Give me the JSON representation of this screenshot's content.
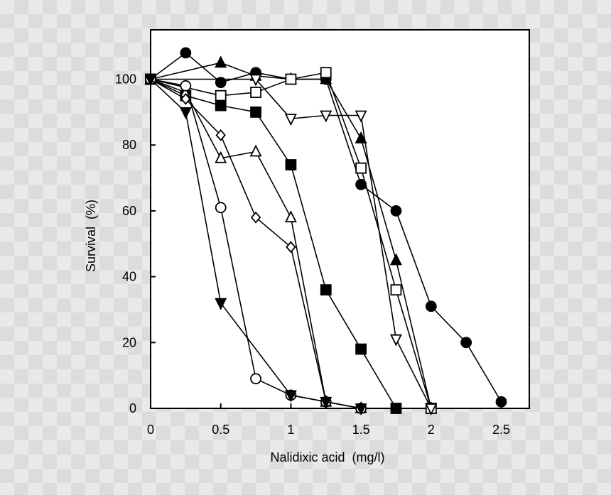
{
  "chart_data": {
    "type": "line",
    "xlabel": "Nalidixic acid  (mg/l)",
    "ylabel": "Survival  (%)",
    "xlim": [
      0,
      2.7
    ],
    "ylim": [
      0,
      115
    ],
    "xticks": [
      0,
      0.5,
      1,
      1.5,
      2,
      2.5
    ],
    "xtick_labels": [
      "0",
      "0.5",
      "1",
      "1.5",
      "2",
      "2.5"
    ],
    "yticks": [
      0,
      20,
      40,
      60,
      80,
      100
    ],
    "ytick_labels": [
      "0",
      "20",
      "40",
      "60",
      "80",
      "100"
    ],
    "grid": false,
    "colors": {
      "line": "#000000",
      "fill": "#000000",
      "open": "#ffffff"
    },
    "series": [
      {
        "marker": "filled-circle",
        "points": [
          [
            0,
            100
          ],
          [
            0.25,
            108
          ],
          [
            0.5,
            99
          ],
          [
            0.75,
            102
          ],
          [
            1,
            100
          ],
          [
            1.25,
            100
          ],
          [
            1.5,
            68
          ],
          [
            1.75,
            60
          ],
          [
            2,
            31
          ],
          [
            2.25,
            20
          ],
          [
            2.5,
            2
          ]
        ]
      },
      {
        "marker": "filled-triangle-up",
        "points": [
          [
            0,
            100
          ],
          [
            0.5,
            105
          ],
          [
            0.75,
            101
          ],
          [
            1,
            100
          ],
          [
            1.25,
            100
          ],
          [
            1.5,
            82
          ],
          [
            1.75,
            45
          ],
          [
            2,
            0
          ]
        ]
      },
      {
        "marker": "open-square",
        "points": [
          [
            0,
            100
          ],
          [
            0.5,
            95
          ],
          [
            0.75,
            96
          ],
          [
            1,
            100
          ],
          [
            1.25,
            102
          ],
          [
            1.5,
            73
          ],
          [
            1.75,
            36
          ],
          [
            2,
            0
          ]
        ]
      },
      {
        "marker": "open-triangle-down",
        "points": [
          [
            0,
            100
          ],
          [
            0.75,
            100
          ],
          [
            1,
            88
          ],
          [
            1.25,
            89
          ],
          [
            1.5,
            89
          ],
          [
            1.75,
            21
          ],
          [
            2,
            0
          ]
        ]
      },
      {
        "marker": "filled-square",
        "points": [
          [
            0,
            100
          ],
          [
            0.25,
            95
          ],
          [
            0.5,
            92
          ],
          [
            0.75,
            90
          ],
          [
            1,
            74
          ],
          [
            1.25,
            36
          ],
          [
            1.5,
            18
          ],
          [
            1.75,
            0
          ]
        ]
      },
      {
        "marker": "open-triangle-up",
        "points": [
          [
            0,
            100
          ],
          [
            0.25,
            96
          ],
          [
            0.5,
            76
          ],
          [
            0.75,
            78
          ],
          [
            1,
            58
          ],
          [
            1.25,
            2
          ],
          [
            1.5,
            0
          ]
        ]
      },
      {
        "marker": "open-diamond",
        "points": [
          [
            0,
            100
          ],
          [
            0.25,
            94
          ],
          [
            0.5,
            83
          ],
          [
            0.75,
            58
          ],
          [
            1,
            49
          ],
          [
            1.25,
            2
          ],
          [
            1.5,
            0
          ]
        ]
      },
      {
        "marker": "open-circle",
        "points": [
          [
            0,
            100
          ],
          [
            0.25,
            98
          ],
          [
            0.5,
            61
          ],
          [
            0.75,
            9
          ],
          [
            1,
            4
          ],
          [
            1.25,
            2
          ],
          [
            1.5,
            0
          ]
        ]
      },
      {
        "marker": "filled-triangle-down",
        "points": [
          [
            0,
            100
          ],
          [
            0.25,
            90
          ],
          [
            0.5,
            32
          ],
          [
            1,
            4
          ],
          [
            1.25,
            2
          ],
          [
            1.5,
            0
          ]
        ]
      }
    ]
  }
}
